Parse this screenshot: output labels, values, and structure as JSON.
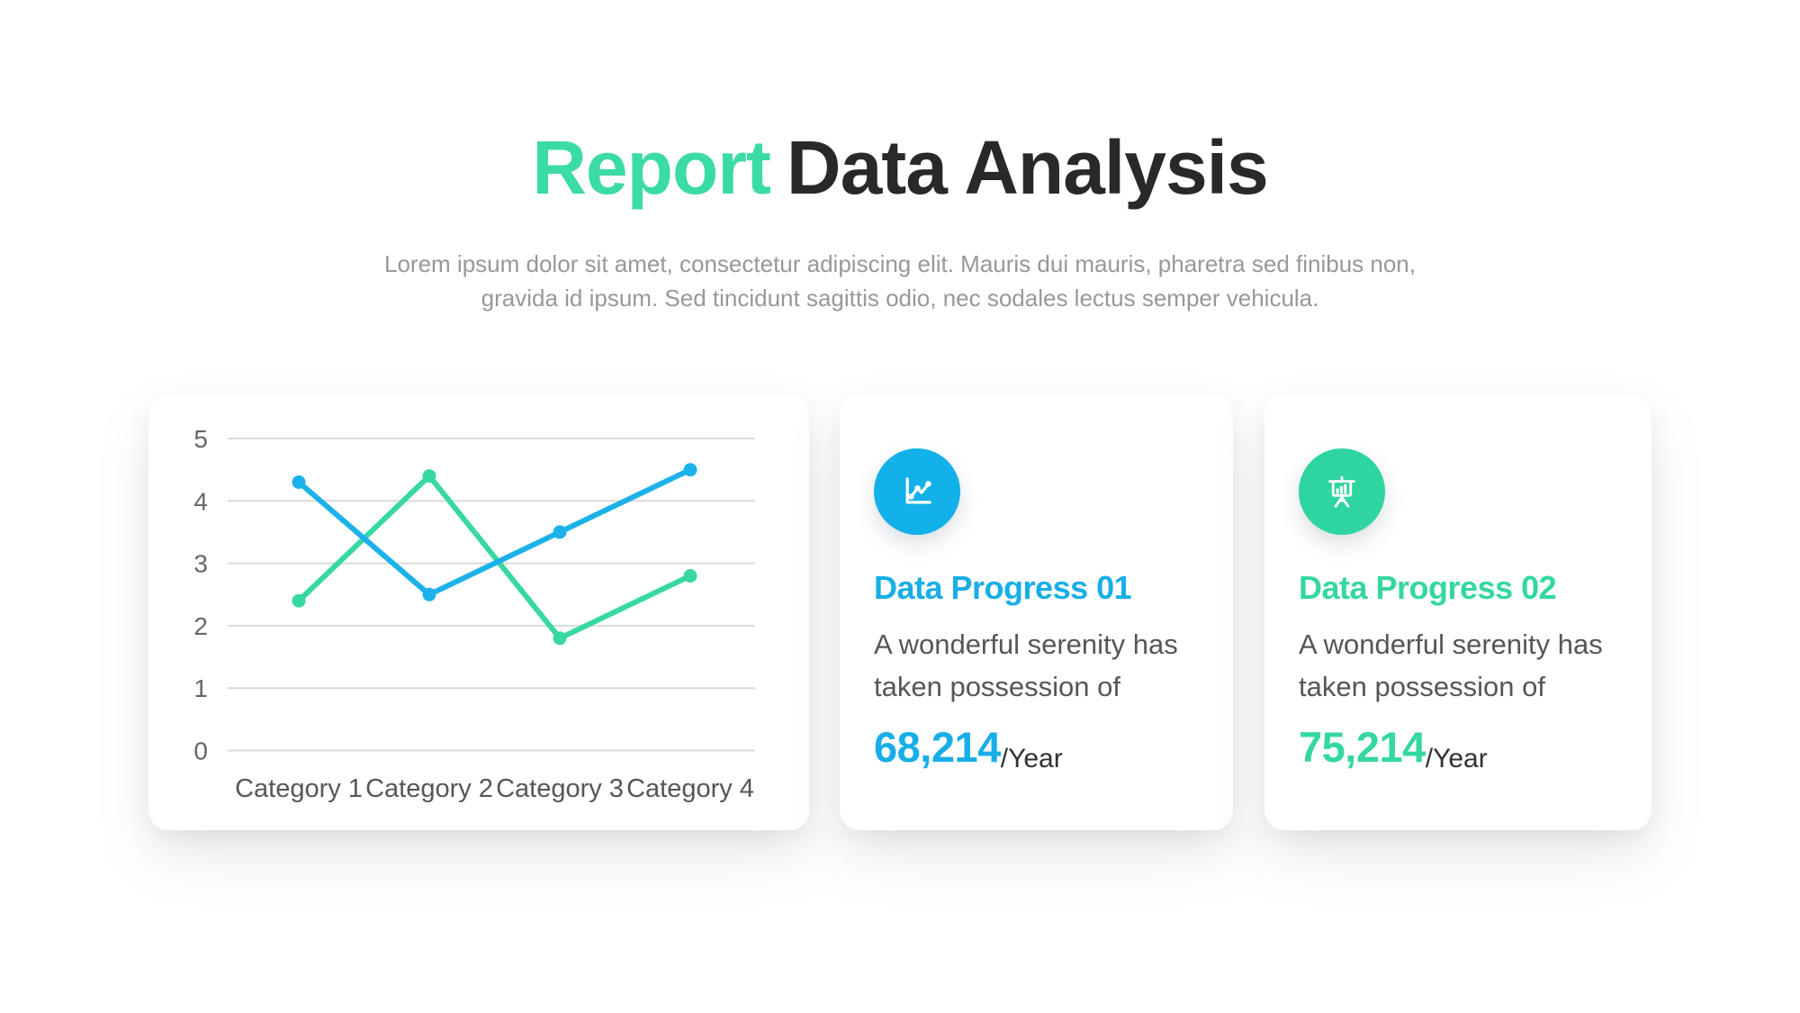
{
  "header": {
    "title_accent": "Report",
    "title_rest": "Data Analysis",
    "subtitle_line1": "Lorem ipsum dolor sit amet, consectetur adipiscing elit. Mauris dui mauris, pharetra sed finibus non,",
    "subtitle_line2": "gravida id ipsum. Sed tincidunt sagittis odio, nec sodales lectus semper vehicula."
  },
  "colors": {
    "accent_green": "#35D7A1",
    "accent_blue": "#18AEE7",
    "title_dark": "#28292B",
    "gridline": "#DADADA",
    "tick_text": "#646668",
    "body_text": "#54575A",
    "subtitle_text": "#96989A"
  },
  "chart_data": {
    "type": "line",
    "title": "",
    "xlabel": "",
    "ylabel": "",
    "categories": [
      "Category 1",
      "Category 2",
      "Category 3",
      "Category 4"
    ],
    "yticks": [
      0,
      1,
      2,
      3,
      4,
      5
    ],
    "ylim": [
      0,
      5
    ],
    "grid": "horizontal-only",
    "legend": "none",
    "series": [
      {
        "name": "green-series",
        "color": "#38D8A1",
        "values": [
          2.4,
          4.4,
          1.8,
          2.8
        ]
      },
      {
        "name": "blue-series",
        "color": "#1CB2E9",
        "values": [
          4.3,
          2.5,
          3.5,
          4.5
        ]
      }
    ]
  },
  "cards": {
    "progress1": {
      "title": "Data Progress 01",
      "desc_line1": "A wonderful serenity has",
      "desc_line2": "taken possession of",
      "value": "68,214",
      "unit": "/Year",
      "icon": "line-chart-icon"
    },
    "progress2": {
      "title": "Data Progress 02",
      "desc_line1": "A wonderful serenity has",
      "desc_line2": "taken possession of",
      "value": "75,214",
      "unit": "/Year",
      "icon": "presentation-board-icon"
    }
  }
}
